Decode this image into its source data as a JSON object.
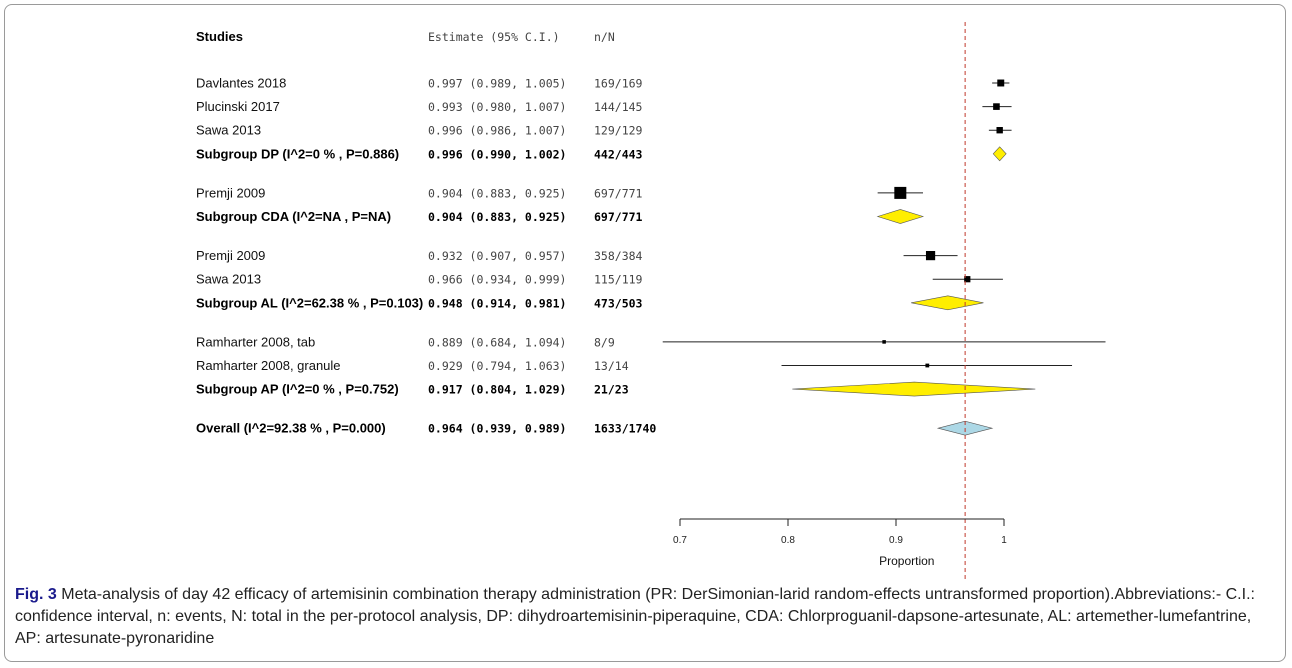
{
  "columns": {
    "studies": "Studies",
    "estimate": "Estimate (95% C.I.)",
    "nN": "n/N"
  },
  "chart_data": {
    "type": "forest",
    "xlabel": "Proportion",
    "xlim": [
      0.7,
      1.0
    ],
    "xticks": [
      0.7,
      0.8,
      0.9,
      1.0
    ],
    "xtick_labels": [
      "0.7",
      "0.8",
      "0.9",
      "1"
    ],
    "reference_line": 0.964,
    "rows": [
      {
        "kind": "study",
        "label": "Davlantes 2018",
        "est": 0.997,
        "lo": 0.989,
        "hi": 1.005,
        "text": "0.997 (0.989, 1.005)",
        "nN": "169/169",
        "weight": 169
      },
      {
        "kind": "study",
        "label": "Plucinski 2017",
        "est": 0.993,
        "lo": 0.98,
        "hi": 1.007,
        "text": "0.993 (0.980, 1.007)",
        "nN": "144/145",
        "weight": 145
      },
      {
        "kind": "study",
        "label": "Sawa 2013",
        "est": 0.996,
        "lo": 0.986,
        "hi": 1.007,
        "text": "0.996 (0.986, 1.007)",
        "nN": "129/129",
        "weight": 129
      },
      {
        "kind": "subgroup",
        "label": "Subgroup DP (I^2=0 % , P=0.886)",
        "est": 0.996,
        "lo": 0.99,
        "hi": 1.002,
        "text": "0.996 (0.990, 1.002)",
        "nN": "442/443",
        "color": "#ffee00"
      },
      {
        "kind": "gap"
      },
      {
        "kind": "study",
        "label": "Premji 2009",
        "est": 0.904,
        "lo": 0.883,
        "hi": 0.925,
        "text": "0.904 (0.883, 0.925)",
        "nN": "697/771",
        "weight": 771
      },
      {
        "kind": "subgroup",
        "label": "Subgroup CDA (I^2=NA , P=NA)",
        "est": 0.904,
        "lo": 0.883,
        "hi": 0.925,
        "text": "0.904 (0.883, 0.925)",
        "nN": "697/771",
        "color": "#ffee00"
      },
      {
        "kind": "gap"
      },
      {
        "kind": "study",
        "label": "Premji 2009",
        "est": 0.932,
        "lo": 0.907,
        "hi": 0.957,
        "text": "0.932 (0.907, 0.957)",
        "nN": "358/384",
        "weight": 384
      },
      {
        "kind": "study",
        "label": "Sawa 2013",
        "est": 0.966,
        "lo": 0.934,
        "hi": 0.999,
        "text": "0.966 (0.934, 0.999)",
        "nN": "115/119",
        "weight": 119
      },
      {
        "kind": "subgroup",
        "label": "Subgroup AL (I^2=62.38 % , P=0.103)",
        "est": 0.948,
        "lo": 0.914,
        "hi": 0.981,
        "text": "0.948 (0.914, 0.981)",
        "nN": "473/503",
        "color": "#ffee00"
      },
      {
        "kind": "gap"
      },
      {
        "kind": "study",
        "label": "Ramharter 2008, tab",
        "est": 0.889,
        "lo": 0.684,
        "hi": 1.094,
        "text": "0.889 (0.684, 1.094)",
        "nN": "8/9",
        "weight": 9
      },
      {
        "kind": "study",
        "label": "Ramharter 2008, granule",
        "est": 0.929,
        "lo": 0.794,
        "hi": 1.063,
        "text": "0.929 (0.794, 1.063)",
        "nN": "13/14",
        "weight": 14
      },
      {
        "kind": "subgroup",
        "label": "Subgroup AP (I^2=0 % , P=0.752)",
        "est": 0.917,
        "lo": 0.804,
        "hi": 1.029,
        "text": "0.917 (0.804, 1.029)",
        "nN": "21/23",
        "color": "#ffee00"
      },
      {
        "kind": "gap"
      },
      {
        "kind": "overall",
        "label": "Overall (I^2=92.38 % , P=0.000)",
        "est": 0.964,
        "lo": 0.939,
        "hi": 0.989,
        "text": "0.964 (0.939, 0.989)",
        "nN": "1633/1740",
        "color": "#add8e6"
      }
    ]
  },
  "caption": {
    "fig_label": "Fig. 3",
    "text": "Meta-analysis of day 42 efficacy of artemisinin combination therapy administration (PR: DerSimonian-larid random-effects untransformed proportion).Abbreviations:- C.I.: confidence interval, n: events, N: total in the per-protocol analysis, DP: dihydroartemisinin-piperaquine, CDA: Chlorproguanil-dapsone-artesunate, AL: artemether-lumefantrine, AP: artesunate-pyronaridine"
  }
}
